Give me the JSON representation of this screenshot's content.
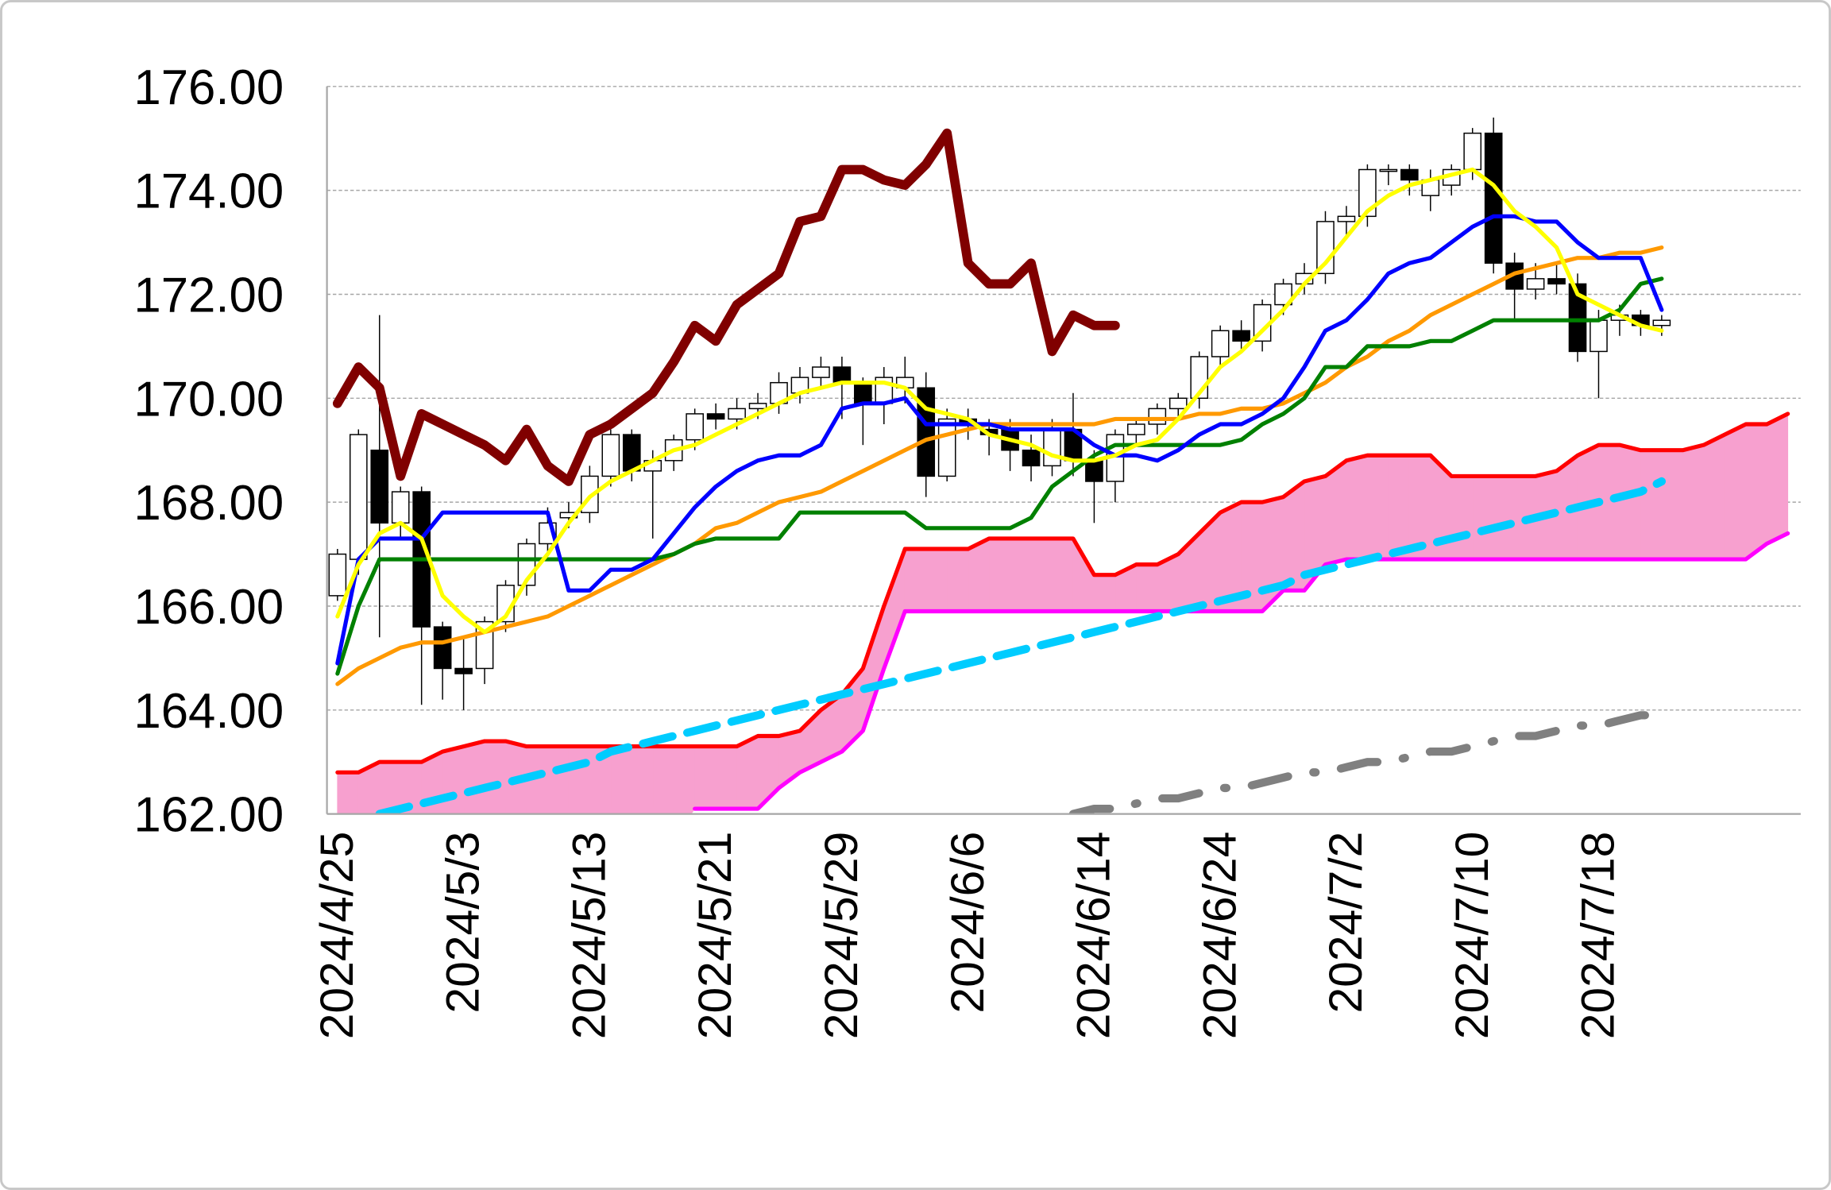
{
  "chart_data": {
    "type": "candlestick",
    "categories": [
      "2024/4/25",
      null,
      null,
      null,
      null,
      null,
      "2024/5/3",
      null,
      null,
      null,
      null,
      null,
      "2024/5/13",
      null,
      null,
      null,
      null,
      null,
      "2024/5/21",
      null,
      null,
      null,
      null,
      null,
      "2024/5/29",
      null,
      null,
      null,
      null,
      null,
      "2024/6/6",
      null,
      null,
      null,
      null,
      null,
      "2024/6/14",
      null,
      null,
      null,
      null,
      null,
      "2024/6/24",
      null,
      null,
      null,
      null,
      null,
      "2024/7/2",
      null,
      null,
      null,
      null,
      null,
      "2024/7/10",
      null,
      null,
      null,
      null,
      null,
      "2024/7/18",
      null,
      null,
      null,
      null,
      null,
      null,
      null,
      null,
      null
    ],
    "ylim": [
      162,
      176
    ],
    "yticks": [
      {
        "value": 162,
        "label": "162.00"
      },
      {
        "value": 164,
        "label": "164.00"
      },
      {
        "value": 166,
        "label": "166.00"
      },
      {
        "value": 168,
        "label": "168.00"
      },
      {
        "value": 170,
        "label": "170.00"
      },
      {
        "value": 172,
        "label": "172.00"
      },
      {
        "value": 174,
        "label": "174.00"
      },
      {
        "value": 176,
        "label": "176.00"
      }
    ],
    "grid": true,
    "candles": {
      "up_color": "#ffffff",
      "down_color": "#000000",
      "open": [
        166.2,
        166.9,
        169.0,
        167.6,
        168.2,
        165.6,
        164.8,
        164.8,
        165.7,
        166.4,
        167.2,
        167.7,
        167.8,
        168.5,
        169.3,
        168.6,
        168.8,
        169.2,
        169.7,
        169.6,
        169.8,
        169.9,
        170.1,
        170.4,
        170.6,
        170.3,
        169.9,
        170.2,
        170.2,
        168.5,
        169.6,
        169.4,
        169.4,
        169.0,
        168.7,
        169.4,
        168.8,
        168.4,
        169.3,
        169.5,
        169.8,
        170.0,
        170.8,
        171.3,
        171.1,
        171.8,
        172.2,
        172.4,
        173.4,
        173.5,
        174.4,
        174.4,
        173.9,
        174.1,
        174.4,
        175.1,
        172.6,
        172.1,
        172.3,
        172.2,
        170.9,
        171.5,
        171.6,
        171.4,
        null,
        null,
        null,
        null,
        null,
        null
      ],
      "high": [
        167.1,
        169.4,
        171.6,
        168.3,
        168.3,
        165.7,
        165.4,
        165.8,
        166.5,
        167.3,
        167.9,
        168.0,
        168.7,
        169.4,
        169.4,
        169.0,
        169.3,
        169.8,
        169.9,
        170.0,
        170.1,
        170.5,
        170.6,
        170.8,
        170.8,
        170.4,
        170.6,
        170.8,
        170.5,
        169.8,
        169.8,
        169.6,
        169.6,
        169.3,
        169.6,
        170.1,
        169.0,
        169.4,
        169.6,
        169.9,
        170.1,
        170.9,
        171.4,
        171.5,
        171.9,
        172.3,
        172.6,
        173.6,
        173.7,
        174.5,
        174.5,
        174.5,
        174.4,
        174.5,
        175.2,
        175.4,
        172.8,
        172.6,
        172.6,
        172.4,
        171.7,
        171.8,
        171.7,
        171.6,
        null,
        null,
        null,
        null,
        null,
        null
      ],
      "low": [
        166.1,
        166.6,
        165.4,
        167.3,
        164.1,
        164.2,
        164.0,
        164.5,
        165.5,
        166.2,
        167.0,
        167.5,
        167.6,
        168.3,
        168.4,
        167.3,
        168.6,
        169.0,
        169.4,
        169.4,
        169.6,
        169.7,
        169.9,
        170.2,
        169.6,
        169.1,
        169.5,
        169.9,
        168.1,
        168.4,
        169.2,
        168.9,
        168.6,
        168.4,
        168.5,
        168.5,
        167.6,
        168.0,
        169.1,
        169.3,
        169.6,
        169.8,
        170.6,
        170.9,
        170.9,
        171.6,
        172.0,
        172.2,
        173.1,
        173.3,
        174.1,
        173.9,
        173.6,
        173.9,
        174.2,
        172.4,
        171.5,
        171.9,
        172.0,
        170.7,
        170.0,
        171.2,
        171.2,
        171.2,
        null,
        null,
        null,
        null,
        null,
        null
      ],
      "close": [
        167.0,
        169.3,
        167.6,
        168.2,
        165.6,
        164.8,
        164.7,
        165.7,
        166.4,
        167.2,
        167.6,
        167.8,
        168.5,
        169.3,
        168.6,
        168.8,
        169.2,
        169.7,
        169.6,
        169.8,
        169.9,
        170.3,
        170.4,
        170.6,
        170.3,
        169.9,
        170.4,
        170.4,
        168.5,
        169.6,
        169.5,
        169.3,
        169.0,
        168.7,
        169.4,
        168.8,
        168.4,
        169.3,
        169.5,
        169.8,
        170.0,
        170.8,
        171.3,
        171.1,
        171.8,
        172.2,
        172.4,
        173.4,
        173.5,
        174.4,
        174.4,
        174.2,
        174.2,
        174.4,
        175.1,
        172.6,
        172.1,
        172.3,
        172.2,
        170.9,
        171.5,
        171.6,
        171.4,
        171.5,
        null,
        null,
        null,
        null,
        null,
        null
      ]
    },
    "cloud": {
      "color": "#f7a0cf",
      "upper": {
        "color": "#ff0000",
        "values": [
          162.8,
          162.8,
          163.0,
          163.0,
          163.0,
          163.2,
          163.3,
          163.4,
          163.4,
          163.3,
          163.3,
          163.3,
          163.3,
          163.3,
          163.3,
          163.3,
          163.3,
          163.3,
          163.3,
          163.3,
          163.5,
          163.5,
          163.6,
          164.0,
          164.3,
          164.8,
          166.0,
          167.1,
          167.1,
          167.1,
          167.1,
          167.3,
          167.3,
          167.3,
          167.3,
          167.3,
          166.6,
          166.6,
          166.8,
          166.8,
          167.0,
          167.4,
          167.8,
          168.0,
          168.0,
          168.1,
          168.4,
          168.5,
          168.8,
          168.9,
          168.9,
          168.9,
          168.9,
          168.5,
          168.5,
          168.5,
          168.5,
          168.5,
          168.6,
          168.9,
          169.1,
          169.1,
          169.0,
          169.0,
          169.0,
          169.1,
          169.3,
          169.5,
          169.5,
          169.7
        ]
      },
      "lower": {
        "color": "#ff00ff",
        "values": [
          null,
          null,
          null,
          null,
          null,
          null,
          null,
          null,
          null,
          null,
          null,
          null,
          null,
          null,
          null,
          null,
          null,
          162.1,
          162.1,
          162.1,
          162.1,
          162.5,
          162.8,
          163.0,
          163.2,
          163.6,
          164.8,
          165.9,
          165.9,
          165.9,
          165.9,
          165.9,
          165.9,
          165.9,
          165.9,
          165.9,
          165.9,
          165.9,
          165.9,
          165.9,
          165.9,
          165.9,
          165.9,
          165.9,
          165.9,
          166.3,
          166.3,
          166.8,
          166.9,
          166.9,
          166.9,
          166.9,
          166.9,
          166.9,
          166.9,
          166.9,
          166.9,
          166.9,
          166.9,
          166.9,
          166.9,
          166.9,
          166.9,
          166.9,
          166.9,
          166.9,
          166.9,
          166.9,
          167.2,
          167.4
        ]
      }
    },
    "series": [
      {
        "color": "#00ccff",
        "style": "dashed",
        "values": [
          null,
          null,
          162.0,
          162.1,
          162.2,
          162.3,
          162.4,
          162.5,
          162.6,
          162.7,
          162.8,
          162.9,
          163.0,
          163.2,
          163.3,
          163.4,
          163.5,
          163.6,
          163.7,
          163.8,
          163.9,
          164.0,
          164.1,
          164.2,
          164.3,
          164.4,
          164.5,
          164.6,
          164.7,
          164.8,
          164.9,
          165.0,
          165.1,
          165.2,
          165.3,
          165.4,
          165.5,
          165.6,
          165.7,
          165.8,
          165.9,
          166.0,
          166.1,
          166.2,
          166.3,
          166.4,
          166.6,
          166.7,
          166.8,
          166.9,
          167.0,
          167.1,
          167.2,
          167.3,
          167.4,
          167.5,
          167.6,
          167.7,
          167.8,
          167.9,
          168.0,
          168.1,
          168.2,
          168.4,
          null,
          null,
          null,
          null,
          null,
          null
        ]
      },
      {
        "color": "#808080",
        "style": "dash-dot",
        "values": [
          null,
          null,
          null,
          null,
          null,
          null,
          null,
          null,
          null,
          null,
          null,
          null,
          null,
          null,
          null,
          null,
          null,
          null,
          null,
          null,
          null,
          null,
          null,
          null,
          null,
          null,
          null,
          null,
          null,
          null,
          null,
          null,
          null,
          null,
          null,
          162.0,
          162.1,
          162.1,
          162.2,
          162.3,
          162.3,
          162.4,
          162.5,
          162.5,
          162.6,
          162.7,
          162.8,
          162.8,
          162.9,
          163.0,
          163.0,
          163.1,
          163.2,
          163.2,
          163.3,
          163.4,
          163.5,
          163.5,
          163.6,
          163.7,
          163.7,
          163.8,
          163.9,
          163.9,
          null,
          null,
          null,
          null,
          null,
          null
        ]
      },
      {
        "color": "#ff9900",
        "style": "solid",
        "values": [
          164.5,
          164.8,
          165.0,
          165.2,
          165.3,
          165.3,
          165.4,
          165.5,
          165.6,
          165.7,
          165.8,
          166.0,
          166.2,
          166.4,
          166.6,
          166.8,
          167.0,
          167.2,
          167.5,
          167.6,
          167.8,
          168.0,
          168.1,
          168.2,
          168.4,
          168.6,
          168.8,
          169.0,
          169.2,
          169.3,
          169.4,
          169.5,
          169.5,
          169.5,
          169.5,
          169.5,
          169.5,
          169.6,
          169.6,
          169.6,
          169.6,
          169.7,
          169.7,
          169.8,
          169.8,
          169.9,
          170.1,
          170.3,
          170.6,
          170.8,
          171.1,
          171.3,
          171.6,
          171.8,
          172.0,
          172.2,
          172.4,
          172.5,
          172.6,
          172.7,
          172.7,
          172.8,
          172.8,
          172.9,
          null,
          null,
          null,
          null,
          null,
          null
        ]
      },
      {
        "color": "#008000",
        "style": "solid",
        "values": [
          164.7,
          166.0,
          166.9,
          166.9,
          166.9,
          166.9,
          166.9,
          166.9,
          166.9,
          166.9,
          166.9,
          166.9,
          166.9,
          166.9,
          166.9,
          166.9,
          167.0,
          167.2,
          167.3,
          167.3,
          167.3,
          167.3,
          167.8,
          167.8,
          167.8,
          167.8,
          167.8,
          167.8,
          167.5,
          167.5,
          167.5,
          167.5,
          167.5,
          167.7,
          168.3,
          168.6,
          168.9,
          169.1,
          169.1,
          169.1,
          169.1,
          169.1,
          169.1,
          169.2,
          169.5,
          169.7,
          170.0,
          170.6,
          170.6,
          171.0,
          171.0,
          171.0,
          171.1,
          171.1,
          171.3,
          171.5,
          171.5,
          171.5,
          171.5,
          171.5,
          171.5,
          171.7,
          172.2,
          172.3,
          null,
          null,
          null,
          null,
          null,
          null
        ]
      },
      {
        "color": "#0000ff",
        "style": "solid",
        "values": [
          164.9,
          166.9,
          167.3,
          167.3,
          167.3,
          167.8,
          167.8,
          167.8,
          167.8,
          167.8,
          167.8,
          166.3,
          166.3,
          166.7,
          166.7,
          166.9,
          167.4,
          167.9,
          168.3,
          168.6,
          168.8,
          168.9,
          168.9,
          169.1,
          169.8,
          169.9,
          169.9,
          170.0,
          169.5,
          169.5,
          169.5,
          169.5,
          169.4,
          169.4,
          169.4,
          169.4,
          169.1,
          168.9,
          168.9,
          168.8,
          169.0,
          169.3,
          169.5,
          169.5,
          169.7,
          170.0,
          170.6,
          171.3,
          171.5,
          171.9,
          172.4,
          172.6,
          172.7,
          173.0,
          173.3,
          173.5,
          173.5,
          173.4,
          173.4,
          173.0,
          172.7,
          172.7,
          172.7,
          171.7,
          null,
          null,
          null,
          null,
          null,
          null
        ]
      },
      {
        "color": "#ffff00",
        "style": "solid",
        "values": [
          165.8,
          166.8,
          167.4,
          167.6,
          167.3,
          166.2,
          165.8,
          165.5,
          165.8,
          166.5,
          167.0,
          167.6,
          168.1,
          168.4,
          168.6,
          168.8,
          169.0,
          169.1,
          169.3,
          169.5,
          169.7,
          169.9,
          170.1,
          170.2,
          170.3,
          170.3,
          170.3,
          170.2,
          169.8,
          169.7,
          169.6,
          169.3,
          169.2,
          169.1,
          168.9,
          168.8,
          168.8,
          168.9,
          169.1,
          169.2,
          169.6,
          170.1,
          170.6,
          170.9,
          171.3,
          171.7,
          172.2,
          172.6,
          173.1,
          173.6,
          173.9,
          174.1,
          174.2,
          174.3,
          174.4,
          174.1,
          173.6,
          173.3,
          172.9,
          172.0,
          171.8,
          171.6,
          171.4,
          171.3,
          null,
          null,
          null,
          null,
          null,
          null
        ]
      },
      {
        "color": "#800000",
        "style": "thick",
        "values": [
          169.9,
          170.6,
          170.2,
          168.5,
          169.7,
          169.5,
          169.3,
          169.1,
          168.8,
          169.4,
          168.7,
          168.4,
          169.3,
          169.5,
          169.8,
          170.1,
          170.7,
          171.4,
          171.1,
          171.8,
          172.1,
          172.4,
          173.4,
          173.5,
          174.4,
          174.4,
          174.2,
          174.1,
          174.5,
          175.1,
          172.6,
          172.2,
          172.2,
          172.6,
          170.9,
          171.6,
          171.4,
          171.4,
          null,
          null,
          null,
          null,
          null,
          null,
          null,
          null,
          null,
          null,
          null,
          null,
          null,
          null,
          null,
          null,
          null,
          null,
          null,
          null,
          null,
          null,
          null,
          null,
          null,
          null,
          null,
          null,
          null,
          null,
          null,
          null
        ]
      }
    ]
  }
}
